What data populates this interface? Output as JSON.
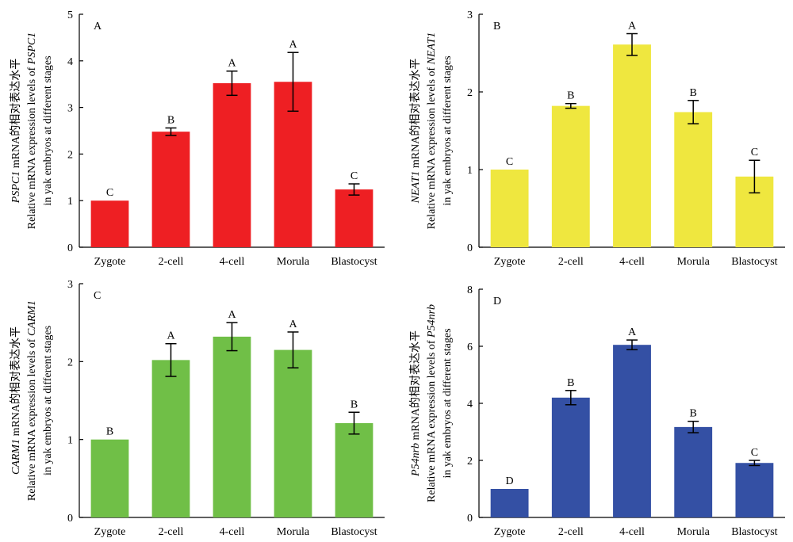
{
  "chart_data": [
    {
      "type": "bar",
      "panel": "A",
      "color": "#ee1f23",
      "categories": [
        "Zygote",
        "2-cell",
        "4-cell",
        "Morula",
        "Blastocyst"
      ],
      "values": [
        1.0,
        2.48,
        3.52,
        3.55,
        1.24
      ],
      "errors": [
        0.0,
        0.08,
        0.26,
        0.63,
        0.12
      ],
      "significance": [
        "C",
        "B",
        "A",
        "A",
        "C"
      ],
      "ylim": [
        0,
        5
      ],
      "yticks": [
        0,
        1,
        2,
        3,
        4,
        5
      ],
      "ylabel": {
        "gene": "PSPC1",
        "line1_rest": " mRNA的相对表达水平",
        "line2_prefix": "Relative mRNA expression levels of ",
        "line3": "in yak embryos at different stages"
      }
    },
    {
      "type": "bar",
      "panel": "B",
      "color": "#efe73f",
      "categories": [
        "Zygote",
        "2-cell",
        "4-cell",
        "Morula",
        "Blastocyst"
      ],
      "values": [
        1.0,
        1.82,
        2.61,
        1.74,
        0.91
      ],
      "errors": [
        0.0,
        0.03,
        0.14,
        0.15,
        0.21
      ],
      "significance": [
        "C",
        "B",
        "A",
        "B",
        "C"
      ],
      "ylim": [
        0,
        3
      ],
      "yticks": [
        0,
        1,
        2,
        3
      ],
      "ylabel": {
        "gene": "NEAT1",
        "line1_rest": " mRNA的相对表达水平",
        "line2_prefix": "Relative mRNA expression levels of ",
        "line3": "in yak embryos at different stages"
      }
    },
    {
      "type": "bar",
      "panel": "C",
      "color": "#70bf47",
      "categories": [
        "Zygote",
        "2-cell",
        "4-cell",
        "Morula",
        "Blastocyst"
      ],
      "values": [
        1.0,
        2.02,
        2.32,
        2.15,
        1.21
      ],
      "errors": [
        0.0,
        0.21,
        0.18,
        0.23,
        0.14
      ],
      "significance": [
        "B",
        "A",
        "A",
        "A",
        "B"
      ],
      "ylim": [
        0,
        3
      ],
      "yticks": [
        0,
        1,
        2,
        3
      ],
      "ylabel": {
        "gene": "CARM1",
        "line1_rest": " mRNA的相对表达水平",
        "line2_prefix": "Relative mRNA expression levels of ",
        "line3": "in yak embryos at different stages"
      }
    },
    {
      "type": "bar",
      "panel": "D",
      "color": "#3450a4",
      "categories": [
        "Zygote",
        "2-cell",
        "4-cell",
        "Morula",
        "Blastocyst"
      ],
      "values": [
        1.0,
        4.2,
        6.05,
        3.17,
        1.91
      ],
      "errors": [
        0.0,
        0.25,
        0.17,
        0.2,
        0.09
      ],
      "significance": [
        "D",
        "B",
        "A",
        "B",
        "C"
      ],
      "ylim": [
        0,
        8
      ],
      "yticks": [
        0,
        2,
        4,
        6,
        8
      ],
      "ylabel": {
        "gene": "P54nrb",
        "line1_rest": " mRNA的相对表达水平",
        "line2_prefix": "Relative mRNA expression levels of ",
        "line3": "in yak embryos at different stages"
      }
    }
  ]
}
